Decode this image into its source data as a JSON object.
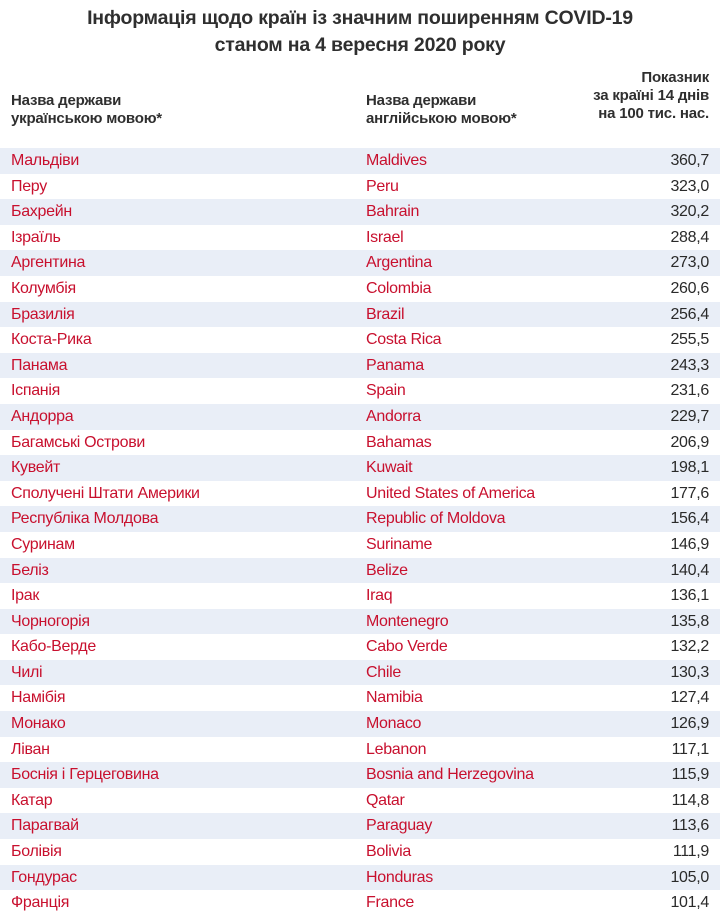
{
  "title": {
    "line1": "Інформація щодо країн із значним поширенням COVID-19",
    "line2": "станом на 4 вересня 2020 року"
  },
  "headers": {
    "col_ua": [
      "Назва держави",
      "українською мовою*"
    ],
    "col_en": [
      "Назва держави",
      "англійською мовою*"
    ],
    "col_value": [
      "Показник",
      "за країні 14 днів",
      "на 100 тис. нас."
    ]
  },
  "colors": {
    "country_text": "#c8102e",
    "stripe": "#e9eef7"
  },
  "rows": [
    {
      "ua": "Мальдіви",
      "en": "Maldives",
      "value": "360,7"
    },
    {
      "ua": "Перу",
      "en": "Peru",
      "value": "323,0"
    },
    {
      "ua": "Бахрейн",
      "en": "Bahrain",
      "value": "320,2"
    },
    {
      "ua": "Ізраїль",
      "en": "Israel",
      "value": "288,4"
    },
    {
      "ua": "Аргентина",
      "en": "Argentina",
      "value": "273,0"
    },
    {
      "ua": "Колумбія",
      "en": "Colombia",
      "value": "260,6"
    },
    {
      "ua": "Бразилія",
      "en": "Brazil",
      "value": "256,4"
    },
    {
      "ua": "Коста-Рика",
      "en": "Costa Rica",
      "value": "255,5"
    },
    {
      "ua": "Панама",
      "en": "Panama",
      "value": "243,3"
    },
    {
      "ua": "Іспанія",
      "en": "Spain",
      "value": "231,6"
    },
    {
      "ua": "Андорра",
      "en": "Andorra",
      "value": "229,7"
    },
    {
      "ua": "Багамські Острови",
      "en": "Bahamas",
      "value": "206,9"
    },
    {
      "ua": "Кувейт",
      "en": "Kuwait",
      "value": "198,1"
    },
    {
      "ua": "Сполучені Штати Америки",
      "en": "United States of America",
      "value": "177,6"
    },
    {
      "ua": "Республіка Молдова",
      "en": "Republic of Moldova",
      "value": "156,4"
    },
    {
      "ua": "Суринам",
      "en": "Suriname",
      "value": "146,9"
    },
    {
      "ua": "Беліз",
      "en": "Belize",
      "value": "140,4"
    },
    {
      "ua": "Ірак",
      "en": "Iraq",
      "value": "136,1"
    },
    {
      "ua": "Чорногорія",
      "en": "Montenegro",
      "value": "135,8"
    },
    {
      "ua": "Кабо-Верде",
      "en": "Cabo Verde",
      "value": "132,2"
    },
    {
      "ua": "Чилі",
      "en": "Chile",
      "value": "130,3"
    },
    {
      "ua": "Намібія",
      "en": "Namibia",
      "value": "127,4"
    },
    {
      "ua": "Монако",
      "en": "Monaco",
      "value": "126,9"
    },
    {
      "ua": "Ліван",
      "en": "Lebanon",
      "value": "117,1"
    },
    {
      "ua": "Боснія і Герцеговина",
      "en": "Bosnia and Herzegovina",
      "value": "115,9"
    },
    {
      "ua": "Катар",
      "en": "Qatar",
      "value": "114,8"
    },
    {
      "ua": "Парагвай",
      "en": "Paraguay",
      "value": "113,6"
    },
    {
      "ua": "Болівія",
      "en": "Bolivia",
      "value": "111,9"
    },
    {
      "ua": "Гондурас",
      "en": "Honduras",
      "value": "105,0"
    },
    {
      "ua": "Франція",
      "en": "France",
      "value": "101,4"
    }
  ]
}
